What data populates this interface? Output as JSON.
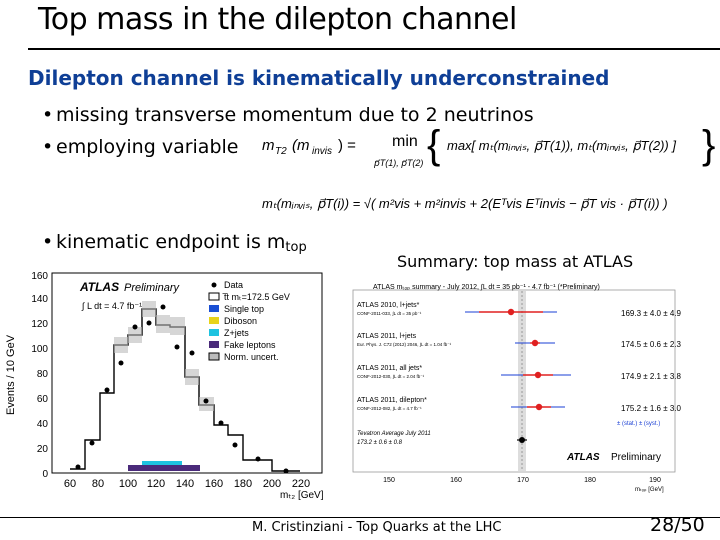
{
  "slide": {
    "title": "Top mass in the  dilepton channel",
    "subtitle": "Dilepton channel is kinematically underconstrained",
    "bullets": [
      "missing transverse momentum due to 2 neutrinos",
      "employing variable",
      "kinematic endpoint is m"
    ],
    "bullet3_sub": "top",
    "summary_label": "Summary: top mass at ATLAS",
    "footer": "M. Cristinziani - Top Quarks at the LHC",
    "page": "28/50"
  },
  "formula1": {
    "lhs": "m",
    "lhs_sub": "T2",
    "lhs_arg": "(m",
    "lhs_arg_sub": "invis",
    "lhs_close": ") =",
    "min": "min",
    "min_sub": "p⃗T(1), p⃗T(2)",
    "body": "max[ mₜ(mᵢₙᵥᵢₛ, p⃗T(1)), mₜ(mᵢₙᵥᵢₛ, p⃗T(2)) ]"
  },
  "formula2": {
    "text": "mₜ(mᵢₙᵥᵢₛ, p⃗T(i)) = √( m²vis + m²invis + 2(Eᵀvis Eᵀinvis − p⃗T vis · p⃗T(i)) )"
  },
  "left_plot": {
    "atlas": "ATLAS",
    "preliminary": "Preliminary",
    "lumi": "∫ L dt = 4.7 fb⁻¹",
    "ylabel": "Events / 10 GeV",
    "xlabel": "mₜ₂ [GeV]",
    "legend": [
      "Data",
      "t̅t mₜ=172.5 GeV",
      "Single top",
      "Diboson",
      "Z+jets",
      "Fake leptons",
      "Norm. uncert."
    ],
    "yticks": [
      "0",
      "20",
      "40",
      "60",
      "80",
      "100",
      "120",
      "140",
      "160"
    ],
    "xticks": [
      "60",
      "80",
      "100",
      "120",
      "140",
      "160",
      "180",
      "200",
      "220"
    ]
  },
  "right_plot": {
    "header": "ATLAS mₜₒₚ summary - July 2012, ∫L dt = 35 pb⁻¹ - 4.7 fb⁻¹ (*Preliminary)",
    "measurements": [
      {
        "label": "ATLAS 2010, l+jets*",
        "ref": "CONF-2011-033, ∫L dt = 35 pb⁻¹",
        "value": "169.3 ± 4.0 ± 4.9"
      },
      {
        "label": "ATLAS 2011, l+jets",
        "ref": "Eur. Phys. J. C72 (2012) 2046, ∫L dt = 1.04 fb⁻¹",
        "value": "174.5 ± 0.6 ± 2.3"
      },
      {
        "label": "ATLAS 2011, all jets*",
        "ref": "CONF-2012-030, ∫L dt = 2.04 fb⁻¹",
        "value": "174.9 ± 2.1 ± 3.8"
      },
      {
        "label": "ATLAS 2011, dilepton*",
        "ref": "CONF-2012-082, ∫L dt = 4.7 fb⁻¹",
        "value": "175.2 ± 1.6 ± 3.0"
      }
    ],
    "legend_note": "± (stat.) ± (syst.)",
    "tevatron": "Tevatron Average July 2011",
    "tevatron_value": "173.2 ± 0.6 ± 0.8",
    "atlas": "ATLAS",
    "preliminary": "Preliminary",
    "xticks": [
      "150",
      "160",
      "170",
      "180",
      "190"
    ],
    "xlabel": "mₜₒₚ [GeV]"
  },
  "colors": {
    "title_blue": "#0f3f96",
    "ttbar": "#ffffff",
    "single_top": "#1a4fd4",
    "diboson": "#e8d31a",
    "zjets": "#1ec3e0",
    "fake": "#4a2a7a"
  }
}
